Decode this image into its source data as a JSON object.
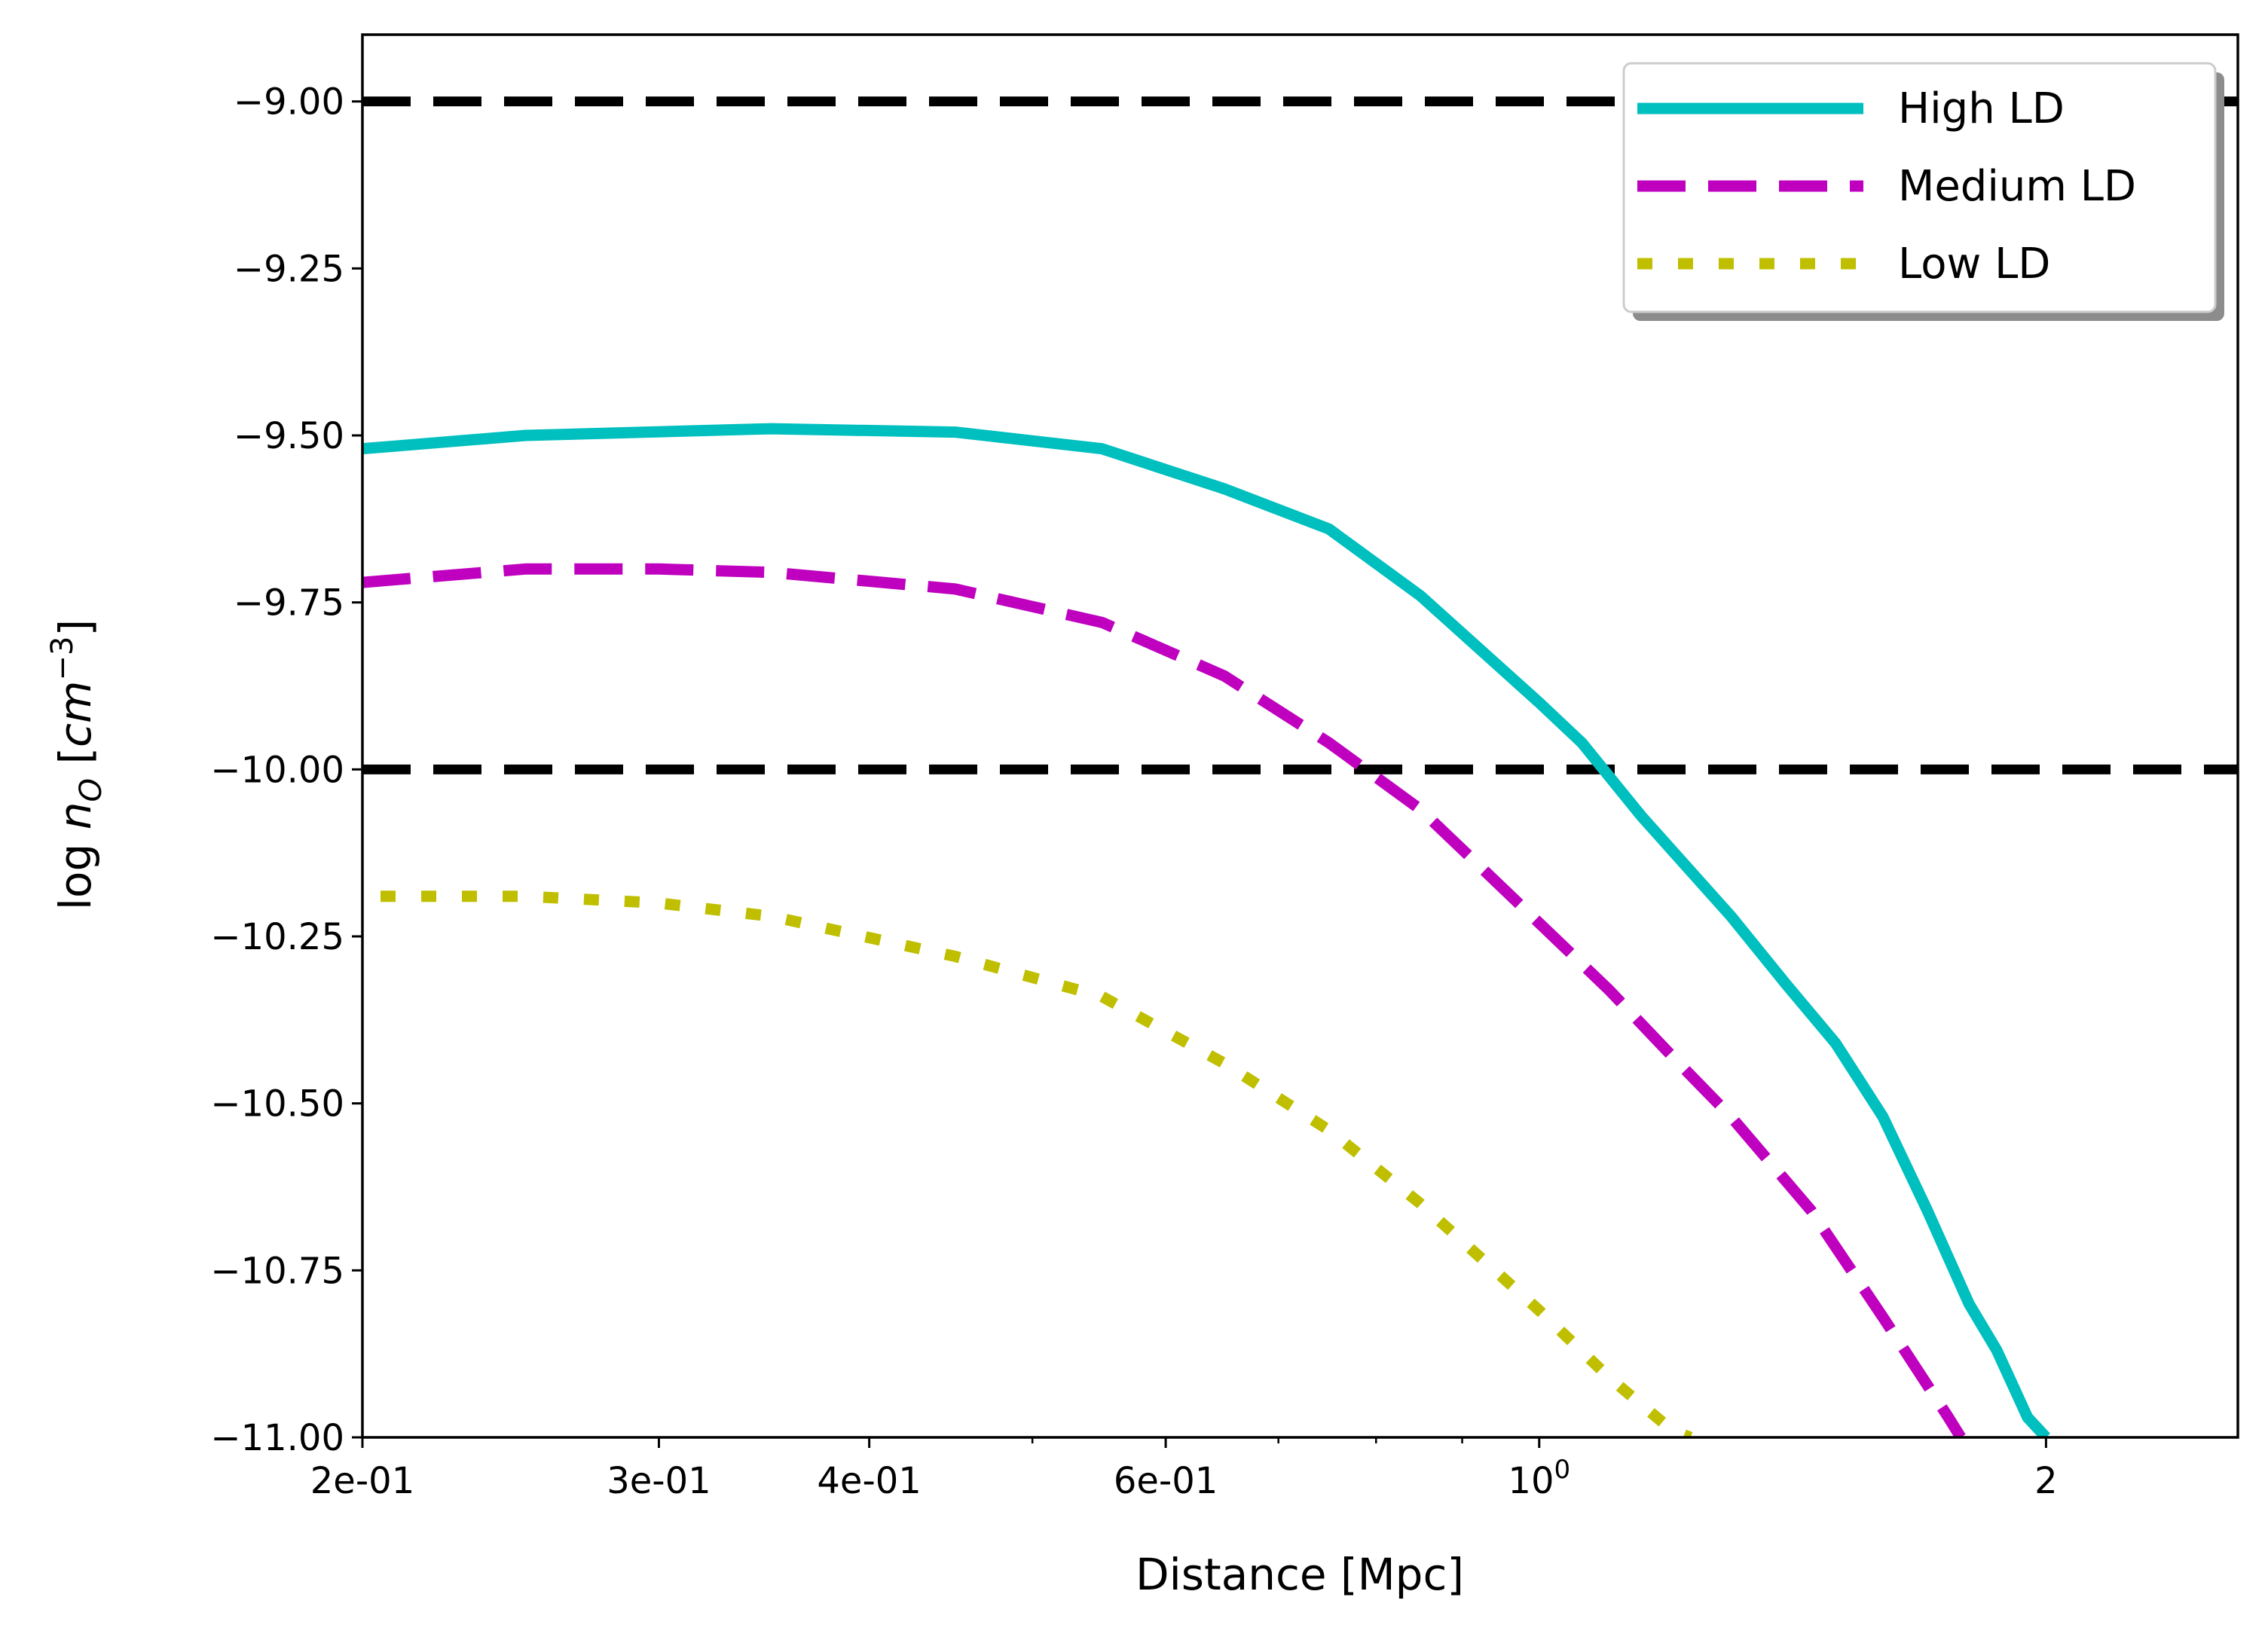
{
  "chart_data": {
    "type": "line",
    "xscale": "log",
    "xlabel": "Distance [Mpc]",
    "ylabel": {
      "prefix": "log ",
      "var": "n",
      "sub": "O",
      "open": " [",
      "unit": "cm",
      "sup": "−3",
      "close": "]"
    },
    "xlim": [
      0.2,
      2.6
    ],
    "ylim": [
      -11.0,
      -8.9
    ],
    "xticks": [
      {
        "value": 0.2,
        "label": "2e-01"
      },
      {
        "value": 0.3,
        "label": "3e-01"
      },
      {
        "value": 0.4,
        "label": "4e-01"
      },
      {
        "value": 0.6,
        "label": "6e-01"
      },
      {
        "value": 1.0,
        "label": "10",
        "sup": "0"
      },
      {
        "value": 2.0,
        "label": "2"
      }
    ],
    "xminor": [
      0.5,
      0.7,
      0.8,
      0.9
    ],
    "yticks": [
      {
        "value": -9.0,
        "label": "−9.00"
      },
      {
        "value": -9.25,
        "label": "−9.25"
      },
      {
        "value": -9.5,
        "label": "−9.50"
      },
      {
        "value": -9.75,
        "label": "−9.75"
      },
      {
        "value": -10.0,
        "label": "−10.00"
      },
      {
        "value": -10.25,
        "label": "−10.25"
      },
      {
        "value": -10.5,
        "label": "−10.50"
      },
      {
        "value": -10.75,
        "label": "−10.75"
      },
      {
        "value": -11.0,
        "label": "−11.00"
      }
    ],
    "hlines": [
      {
        "y": -9.0,
        "color": "#000000",
        "style": "dashed"
      },
      {
        "y": -10.0,
        "color": "#000000",
        "style": "dashed"
      }
    ],
    "legend_position": "top-right",
    "series": [
      {
        "name": "High LD",
        "color": "#00bfbf",
        "style": "solid",
        "points": [
          [
            0.2,
            -9.52
          ],
          [
            0.25,
            -9.5
          ],
          [
            0.35,
            -9.49
          ],
          [
            0.45,
            -9.495
          ],
          [
            0.55,
            -9.52
          ],
          [
            0.65,
            -9.58
          ],
          [
            0.75,
            -9.64
          ],
          [
            0.85,
            -9.74
          ],
          [
            1.0,
            -9.9
          ],
          [
            1.06,
            -9.96
          ],
          [
            1.15,
            -10.07
          ],
          [
            1.3,
            -10.22
          ],
          [
            1.4,
            -10.32
          ],
          [
            1.5,
            -10.41
          ],
          [
            1.6,
            -10.52
          ],
          [
            1.7,
            -10.66
          ],
          [
            1.8,
            -10.8
          ],
          [
            1.87,
            -10.87
          ],
          [
            1.95,
            -10.97
          ],
          [
            2.0,
            -11.0
          ]
        ]
      },
      {
        "name": "Medium LD",
        "color": "#bf00bf",
        "style": "dashed",
        "points": [
          [
            0.2,
            -9.72
          ],
          [
            0.25,
            -9.7
          ],
          [
            0.3,
            -9.7
          ],
          [
            0.35,
            -9.705
          ],
          [
            0.45,
            -9.73
          ],
          [
            0.55,
            -9.78
          ],
          [
            0.65,
            -9.86
          ],
          [
            0.75,
            -9.96
          ],
          [
            0.85,
            -10.06
          ],
          [
            1.0,
            -10.23
          ],
          [
            1.1,
            -10.33
          ],
          [
            1.2,
            -10.43
          ],
          [
            1.3,
            -10.52
          ],
          [
            1.45,
            -10.66
          ],
          [
            1.6,
            -10.82
          ],
          [
            1.75,
            -10.97
          ],
          [
            1.78,
            -11.0
          ]
        ]
      },
      {
        "name": "Low LD",
        "color": "#bfbf00",
        "style": "dotted",
        "points": [
          [
            0.205,
            -10.19
          ],
          [
            0.25,
            -10.19
          ],
          [
            0.3,
            -10.2
          ],
          [
            0.35,
            -10.22
          ],
          [
            0.45,
            -10.28
          ],
          [
            0.55,
            -10.34
          ],
          [
            0.65,
            -10.44
          ],
          [
            0.75,
            -10.54
          ],
          [
            0.85,
            -10.65
          ],
          [
            1.0,
            -10.81
          ],
          [
            1.1,
            -10.91
          ],
          [
            1.2,
            -10.99
          ],
          [
            1.23,
            -11.0
          ]
        ]
      }
    ]
  }
}
